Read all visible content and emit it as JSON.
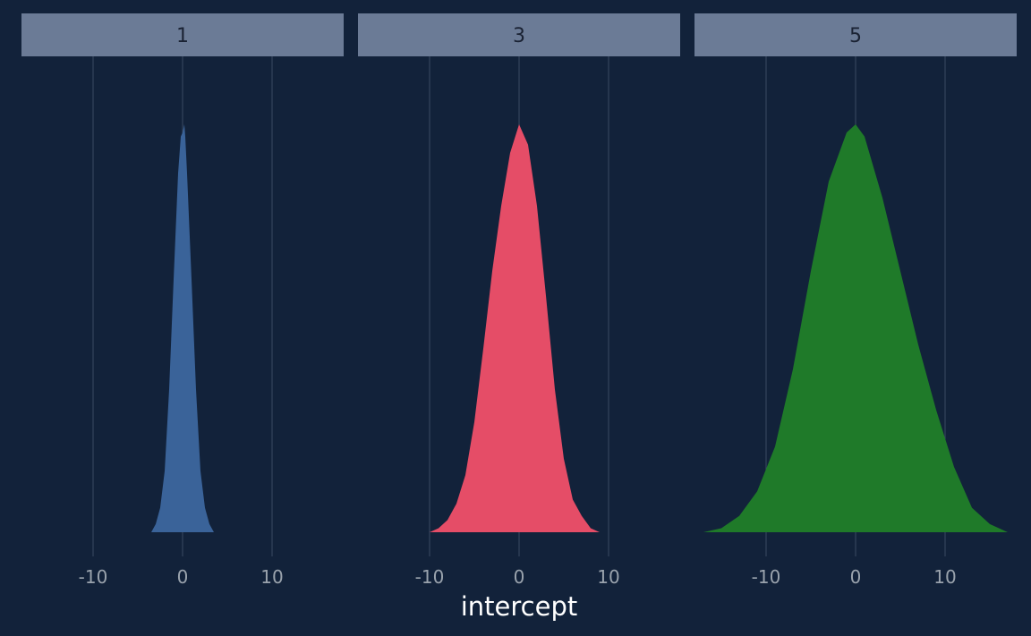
{
  "chart_data": {
    "type": "area",
    "xlabel": "intercept",
    "ylabel": "",
    "xlim": [
      -18,
      18
    ],
    "x_ticks": [
      -10,
      0,
      10
    ],
    "x_tick_labels": [
      "-10",
      "0",
      "10"
    ],
    "grid": "vertical-major",
    "legend": "none",
    "colors": {
      "background": "#12223a",
      "strip_fill": "#6b7b96",
      "grid": "#3a4a63",
      "tick_text": "#9aa3ad",
      "xlabel_text": "#ffffff"
    },
    "panels": [
      {
        "label": "1",
        "color": "#3a6399",
        "x": [
          -3.5,
          -3.0,
          -2.5,
          -2.0,
          -1.5,
          -1.0,
          -0.5,
          -0.2,
          0.0,
          0.2,
          0.3,
          0.5,
          1.0,
          1.5,
          2.0,
          2.5,
          3.0,
          3.5
        ],
        "density": [
          0.0,
          0.02,
          0.06,
          0.15,
          0.35,
          0.62,
          0.88,
          0.97,
          0.98,
          1.0,
          0.97,
          0.88,
          0.62,
          0.35,
          0.15,
          0.06,
          0.02,
          0.0
        ]
      },
      {
        "label": "3",
        "color": "#e54d67",
        "x": [
          -10.0,
          -9.0,
          -8.0,
          -7.0,
          -6.0,
          -5.0,
          -4.0,
          -3.0,
          -2.0,
          -1.0,
          0.0,
          1.0,
          2.0,
          3.0,
          4.0,
          5.0,
          6.0,
          7.0,
          8.0,
          9.0,
          10.0
        ],
        "density": [
          0.0,
          0.01,
          0.03,
          0.07,
          0.14,
          0.27,
          0.45,
          0.64,
          0.8,
          0.93,
          1.0,
          0.95,
          0.8,
          0.58,
          0.35,
          0.18,
          0.08,
          0.04,
          0.01,
          0.0,
          0.0
        ]
      },
      {
        "label": "5",
        "color": "#1f7a29",
        "x": [
          -17.0,
          -15.0,
          -13.0,
          -11.0,
          -9.0,
          -7.0,
          -5.0,
          -3.0,
          -1.0,
          0.0,
          1.0,
          3.0,
          5.0,
          7.0,
          9.0,
          11.0,
          13.0,
          15.0,
          17.0
        ],
        "density": [
          0.0,
          0.01,
          0.04,
          0.1,
          0.21,
          0.4,
          0.64,
          0.86,
          0.98,
          1.0,
          0.97,
          0.82,
          0.64,
          0.46,
          0.3,
          0.16,
          0.06,
          0.02,
          0.0
        ]
      }
    ]
  }
}
